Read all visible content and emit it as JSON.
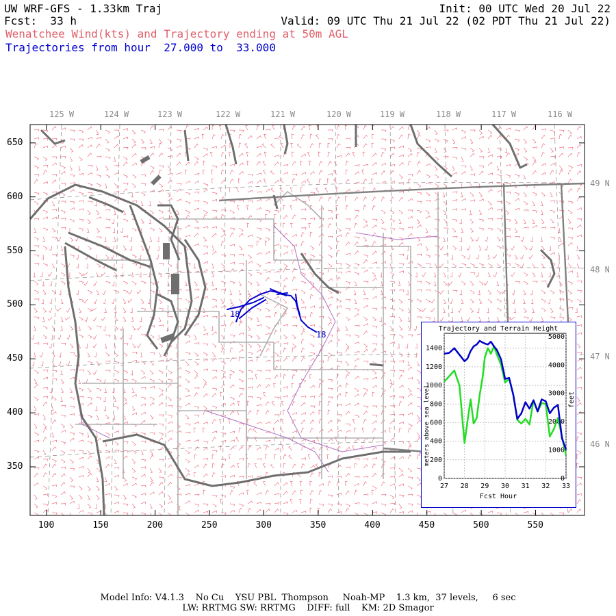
{
  "header": {
    "title": "UW WRF-GFS - 1.33km Traj",
    "init": "Init: 00 UTC Wed 20 Jul 22",
    "fcst": "Fcst:  33 h",
    "valid": "Valid: 09 UTC Thu 21 Jul 22 (02 PDT Thu 21 Jul 22)",
    "subtitle": "Wenatchee Wind(kts) and Trajectory ending at 50m AGL",
    "traj_range": "Trajectories from hour  27.000 to  33.000"
  },
  "map": {
    "lon_labels": [
      "125 W",
      "124 W",
      "123 W",
      "122 W",
      "121 W",
      "120 W",
      "119 W",
      "118 W",
      "117 W",
      "116 W"
    ],
    "lat_labels": [
      "49 N",
      "48 N",
      "47 N",
      "46 N"
    ],
    "x_ticks": [
      "100",
      "150",
      "200",
      "250",
      "300",
      "350",
      "400",
      "450",
      "500",
      "550"
    ],
    "y_ticks": [
      "650",
      "600",
      "550",
      "500",
      "450",
      "400",
      "350"
    ],
    "traj_marker_west": "18",
    "traj_marker_east": "18",
    "colors": {
      "wind": "#f07080",
      "coast": "#707070",
      "county": "#b0b0b0",
      "river": "#b070c0",
      "traj": "#0000cc"
    }
  },
  "inset": {
    "title": "Trajectory and Terrain Height",
    "xlabel": "Fcst Hour",
    "ylabel_left": "meters above sea level",
    "ylabel_right": "feet"
  },
  "chart_data": {
    "type": "line",
    "title": "Trajectory and Terrain Height",
    "xlabel": "Fcst Hour",
    "ylabel": "meters above sea level",
    "y2label": "feet",
    "xlim": [
      27,
      33
    ],
    "ylim": [
      0,
      1560
    ],
    "y2lim": [
      0,
      5118
    ],
    "x_ticks": [
      "27",
      "28",
      "29",
      "30",
      "31",
      "32",
      "33"
    ],
    "y_ticks": [
      "0",
      "200",
      "400",
      "600",
      "800",
      "1000",
      "1200",
      "1400"
    ],
    "y2_ticks": [
      "0",
      "1000",
      "2000",
      "3000",
      "4000",
      "5000"
    ],
    "x": [
      27.0,
      27.25,
      27.5,
      27.75,
      28.0,
      28.15,
      28.3,
      28.45,
      28.6,
      28.75,
      28.9,
      29.0,
      29.15,
      29.3,
      29.45,
      29.6,
      29.8,
      30.0,
      30.2,
      30.4,
      30.6,
      30.8,
      31.0,
      31.2,
      31.4,
      31.6,
      31.8,
      32.0,
      32.2,
      32.4,
      32.6,
      32.8,
      33.0
    ],
    "series": [
      {
        "color": "#0000cc",
        "values": [
          1340,
          1350,
          1400,
          1330,
          1260,
          1290,
          1370,
          1420,
          1440,
          1480,
          1460,
          1450,
          1440,
          1470,
          1420,
          1380,
          1280,
          1070,
          1080,
          900,
          640,
          700,
          820,
          750,
          840,
          720,
          850,
          830,
          700,
          760,
          790,
          430,
          310
        ]
      },
      {
        "color": "#22dd22",
        "values": [
          1040,
          1100,
          1160,
          1000,
          380,
          620,
          850,
          590,
          650,
          900,
          1100,
          1300,
          1400,
          1340,
          1420,
          1330,
          1220,
          1030,
          1070,
          900,
          630,
          590,
          640,
          580,
          840,
          720,
          810,
          800,
          450,
          530,
          650,
          450,
          250
        ]
      }
    ]
  },
  "footer": {
    "line1": "Model Info: V4.1.3    No Cu    YSU PBL  Thompson     Noah-MP    1.3 km,  37 levels,     6 sec",
    "line2": "LW: RRTMG SW: RRTMG    DIFF: full    KM: 2D Smagor"
  }
}
